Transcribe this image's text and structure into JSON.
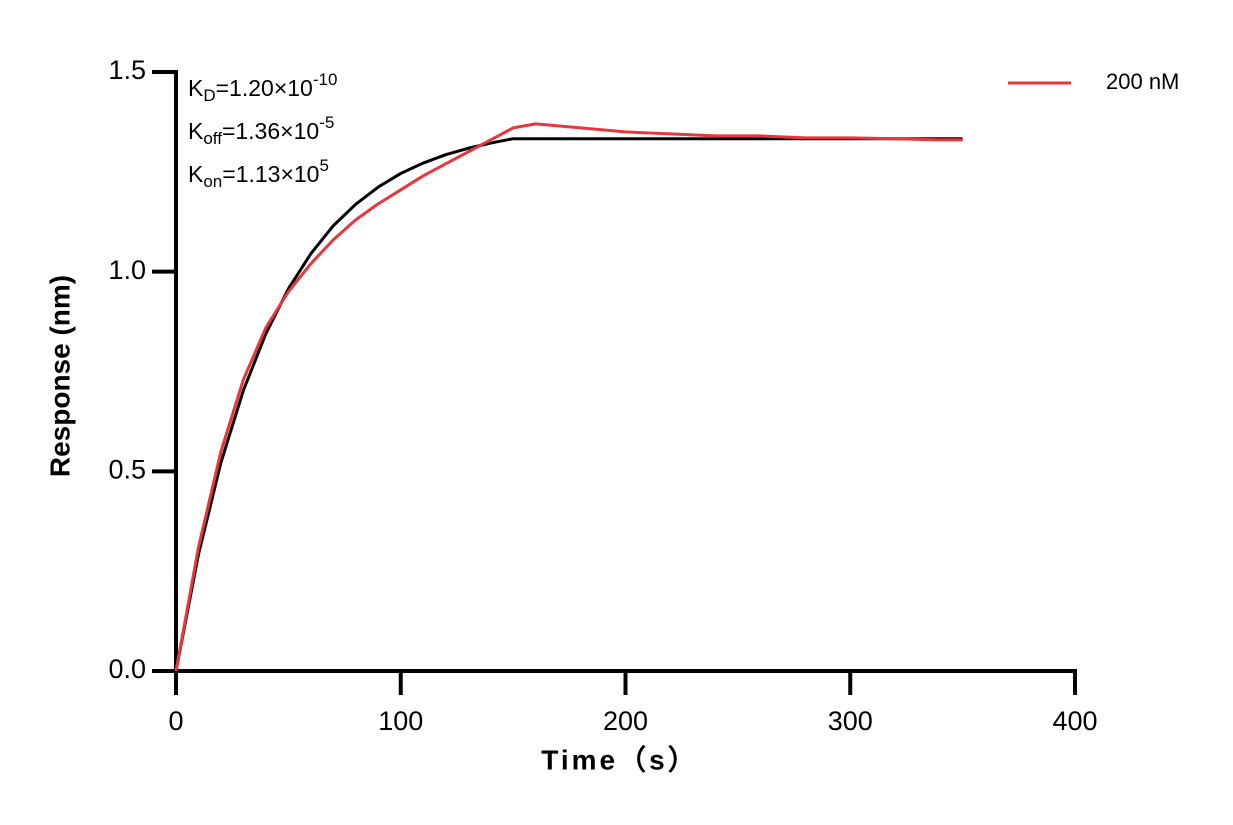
{
  "chart_data": {
    "type": "line",
    "xlabel": "Time（s）",
    "ylabel": "Response (nm)",
    "annotations": [
      [
        "K",
        "D",
        "=1.20×10",
        "-10"
      ],
      [
        "K",
        "off",
        "=1.36×10",
        "-5"
      ],
      [
        "K",
        "on",
        "=1.13×10",
        "5"
      ]
    ],
    "xlim": [
      0,
      400
    ],
    "xticks": [
      0,
      100,
      200,
      300,
      400
    ],
    "ylim": [
      0,
      1.5
    ],
    "yticks": [
      {
        "value": 0,
        "label": "0.0"
      },
      0.5,
      {
        "value": 1,
        "label": "1.0"
      },
      1.5
    ],
    "legend": "top-right",
    "series": [
      {
        "name": "200 nM",
        "color": "#e8373c",
        "x": [
          0,
          10,
          20,
          30,
          40,
          50,
          60,
          70,
          80,
          90,
          100,
          110,
          120,
          130,
          140,
          150,
          160,
          170,
          180,
          190,
          200,
          220,
          240,
          260,
          280,
          300,
          320,
          340,
          350
        ],
        "values": [
          0,
          0.31,
          0.55,
          0.73,
          0.86,
          0.95,
          1.02,
          1.08,
          1.13,
          1.17,
          1.205,
          1.24,
          1.27,
          1.3,
          1.33,
          1.36,
          1.37,
          1.365,
          1.36,
          1.355,
          1.35,
          1.345,
          1.34,
          1.34,
          1.335,
          1.335,
          1.333,
          1.33,
          1.33
        ]
      },
      {
        "color": "#000000",
        "x": [
          0,
          10,
          20,
          30,
          40,
          50,
          60,
          70,
          80,
          90,
          100,
          110,
          120,
          130,
          140,
          150,
          200,
          250,
          300,
          350
        ],
        "values": [
          0,
          0.292,
          0.522,
          0.703,
          0.845,
          0.957,
          1.045,
          1.115,
          1.169,
          1.212,
          1.246,
          1.272,
          1.293,
          1.309,
          1.322,
          1.333,
          1.333,
          1.333,
          1.333,
          1.333
        ]
      }
    ]
  }
}
